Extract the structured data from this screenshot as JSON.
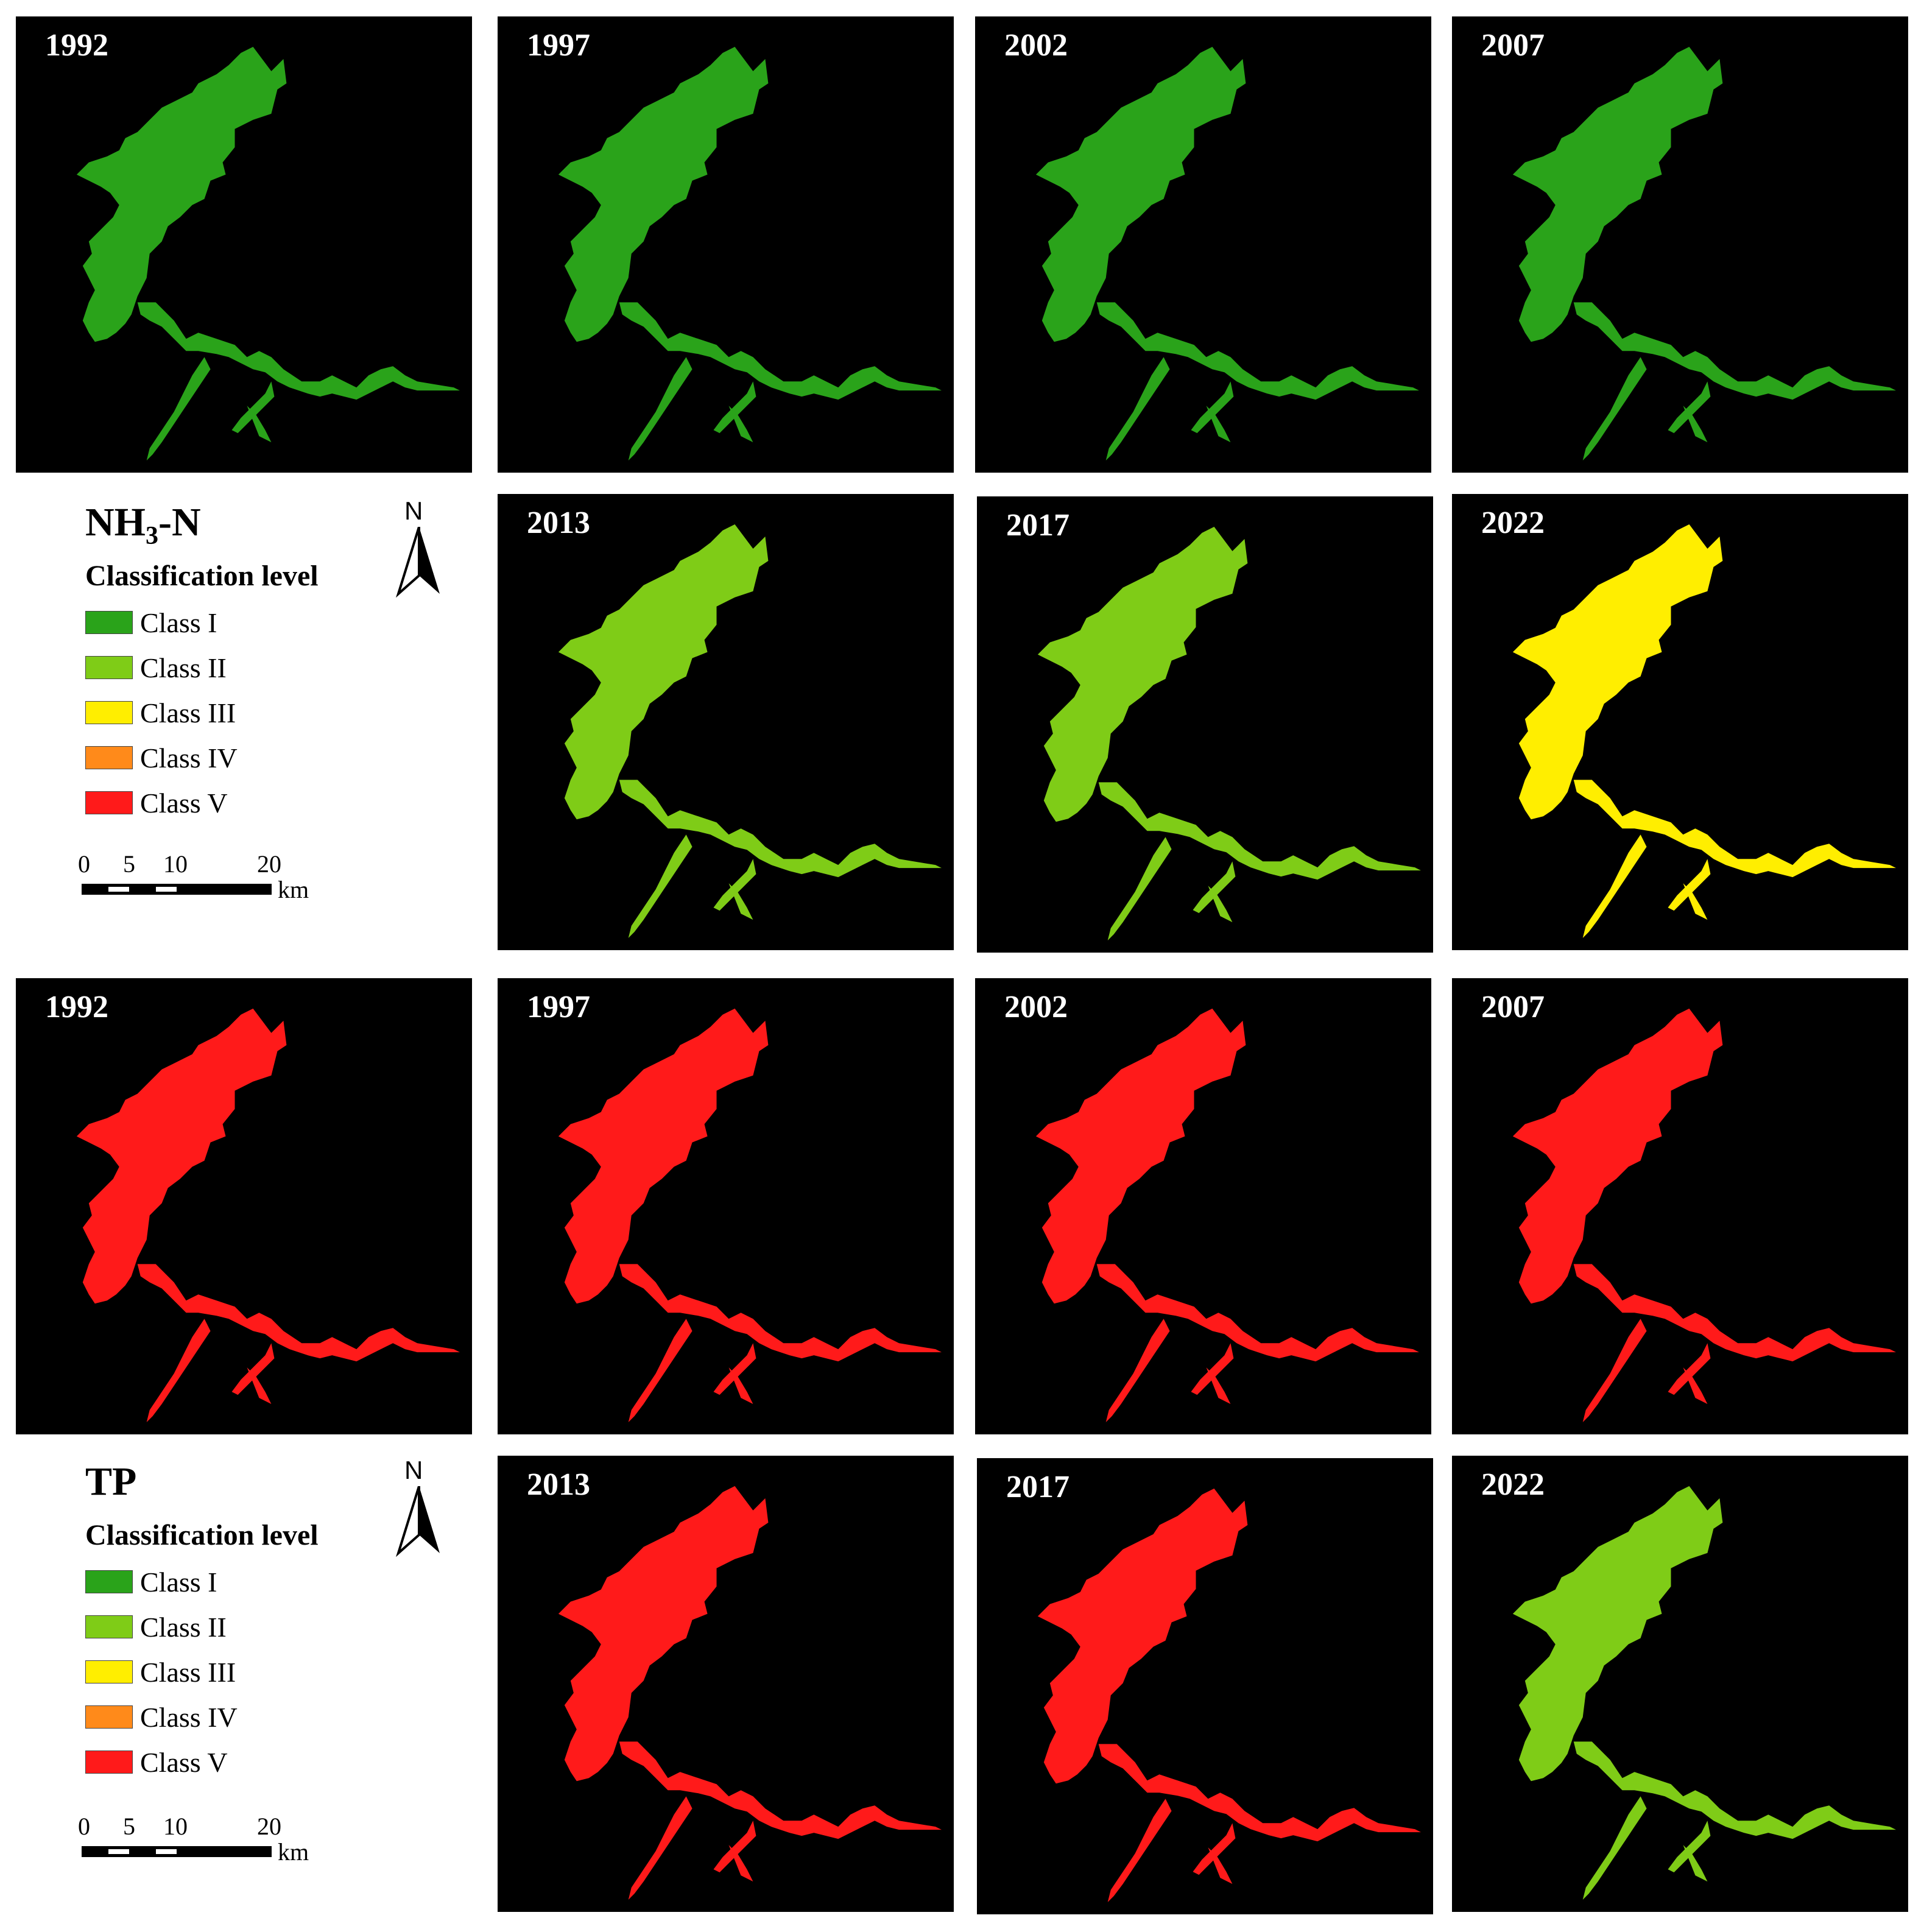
{
  "legend_classes": [
    "Class I",
    "Class II",
    "Class III",
    "Class IV",
    "Class V"
  ],
  "class_colors": {
    "Class I": "#2aa31a",
    "Class II": "#7fcc17",
    "Class III": "#ffee00",
    "Class IV": "#ff8a1a",
    "Class V": "#ff1a1a"
  },
  "nh3n": {
    "title_main": "NH",
    "title_sub": "3",
    "title_tail": "-N",
    "subtitle": "Classification level",
    "panels": [
      {
        "year": "1992",
        "dominant": "Class I"
      },
      {
        "year": "1997",
        "dominant": "Class I"
      },
      {
        "year": "2002",
        "dominant": "Class I"
      },
      {
        "year": "2007",
        "dominant": "Class I"
      },
      {
        "year": "2013",
        "dominant": "Class II"
      },
      {
        "year": "2017",
        "dominant": "Class II"
      },
      {
        "year": "2022",
        "dominant": "Class III"
      }
    ]
  },
  "tp": {
    "title": "TP",
    "subtitle": "Classification level",
    "panels": [
      {
        "year": "1992",
        "dominant": "Class V"
      },
      {
        "year": "1997",
        "dominant": "Class V"
      },
      {
        "year": "2002",
        "dominant": "Class V"
      },
      {
        "year": "2007",
        "dominant": "Class V"
      },
      {
        "year": "2013",
        "dominant": "Class V"
      },
      {
        "year": "2017",
        "dominant": "Class V"
      },
      {
        "year": "2022",
        "dominant": "Class II"
      }
    ]
  },
  "north_label": "N",
  "scale_ticks": [
    "0",
    "5",
    "10",
    "20"
  ],
  "scale_unit": "km"
}
